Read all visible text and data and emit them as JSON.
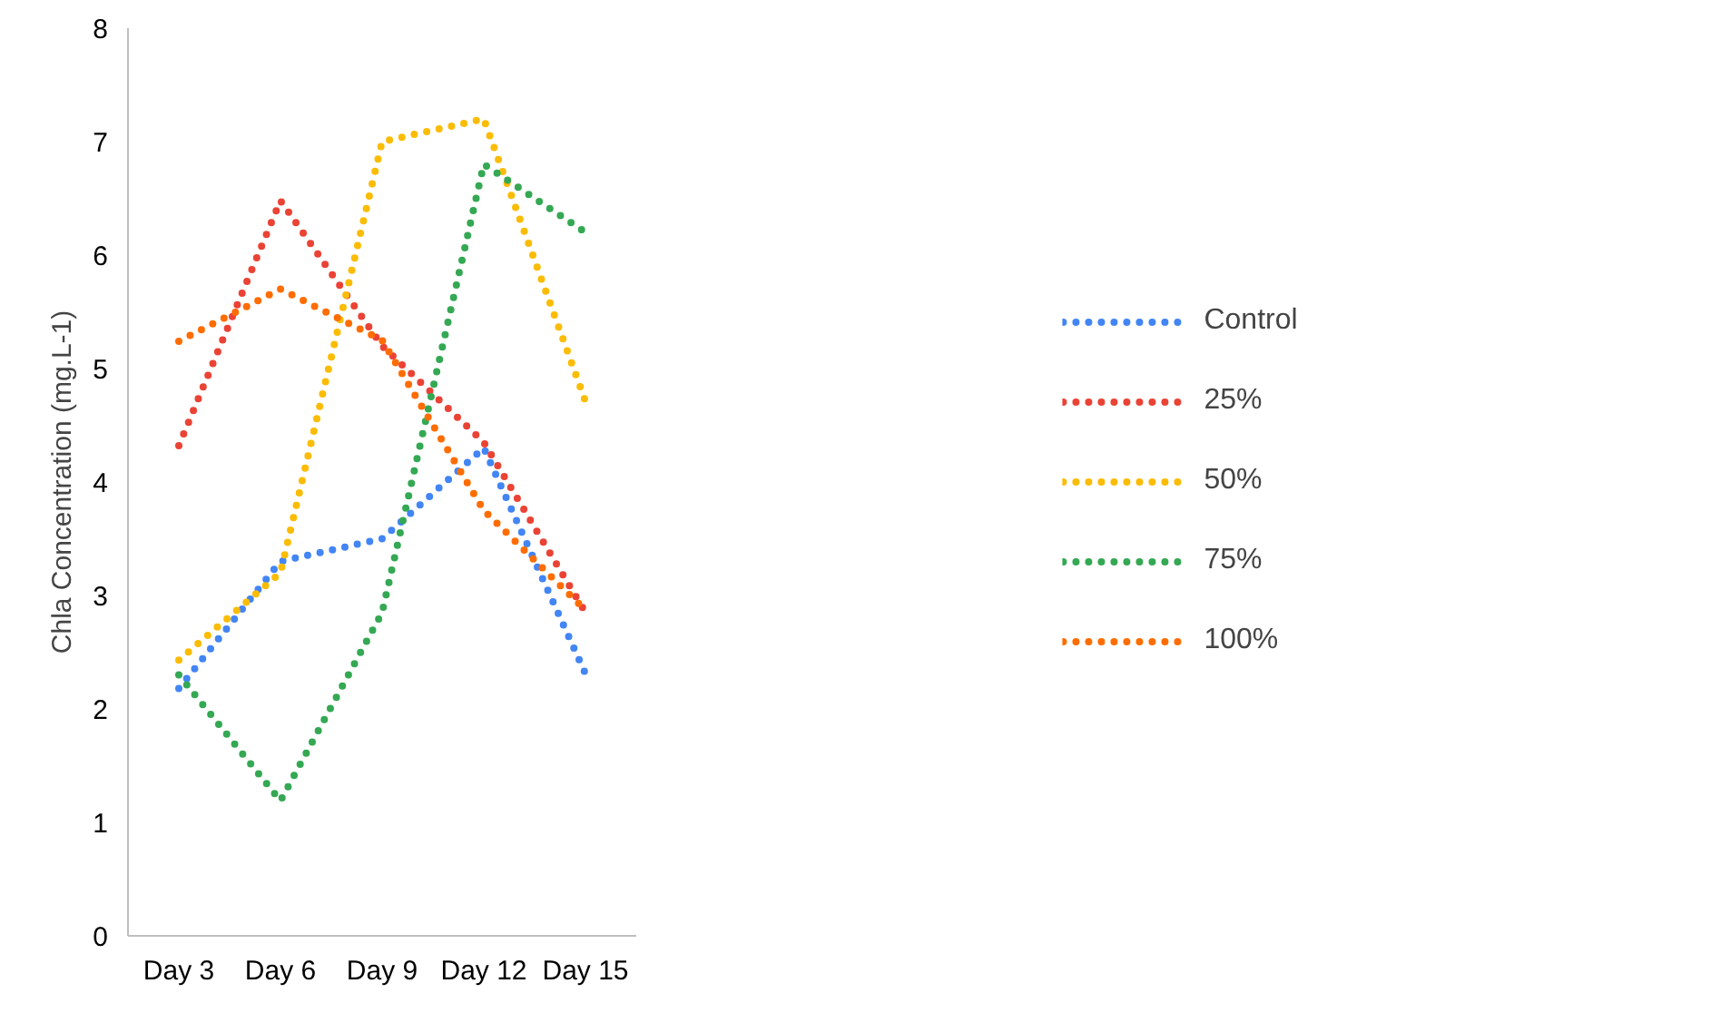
{
  "chart_data": {
    "type": "line",
    "ylabel": "Chla Concentration (mg.L-1)",
    "categories": [
      "Day 3",
      "Day 6",
      "Day 9",
      "Day 12",
      "Day 15"
    ],
    "ylim": [
      0,
      8
    ],
    "yticks": [
      0,
      1,
      2,
      3,
      4,
      5,
      6,
      7,
      8
    ],
    "grid": false,
    "legend": "right",
    "line_style": "dotted",
    "marker": "none",
    "series": [
      {
        "name": "Control",
        "color": "#4285f4",
        "values": [
          2.18,
          3.3,
          3.5,
          4.3,
          2.31
        ]
      },
      {
        "name": "25%",
        "color": "#ea4335",
        "values": [
          4.32,
          6.48,
          5.2,
          4.35,
          2.85
        ]
      },
      {
        "name": "50%",
        "color": "#fbbc04",
        "values": [
          2.43,
          3.2,
          7.0,
          7.2,
          4.71
        ]
      },
      {
        "name": "75%",
        "color": "#34a853",
        "values": [
          2.3,
          1.19,
          2.85,
          6.8,
          6.2
        ]
      },
      {
        "name": "100%",
        "color": "#ff6d01",
        "values": [
          5.24,
          5.7,
          5.25,
          3.75,
          2.87
        ]
      }
    ]
  }
}
